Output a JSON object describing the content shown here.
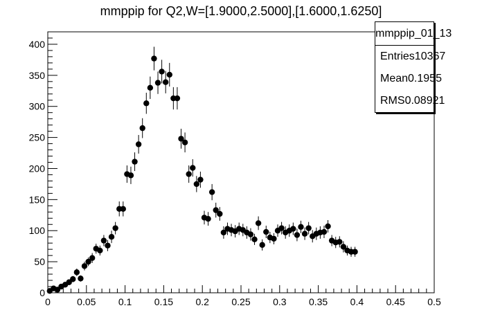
{
  "title": "mmppip for Q2,W=[1.9000,2.5000],[1.6000,1.6250]",
  "stats_box": {
    "name": "mmppip_01_13",
    "entries_label": "Entries",
    "entries_value": "10367",
    "mean_label": "Mean",
    "mean_value": "0.1955",
    "rms_label": "RMS",
    "rms_value": "0.08921"
  },
  "chart_data": {
    "type": "scatter",
    "title": "mmppip for Q2,W=[1.9000,2.5000],[1.6000,1.6250]",
    "xlabel": "",
    "ylabel": "",
    "xlim": [
      0,
      0.5
    ],
    "ylim": [
      0,
      420
    ],
    "x_ticks": [
      0,
      0.05,
      0.1,
      0.15,
      0.2,
      0.25,
      0.3,
      0.35,
      0.4,
      0.45,
      0.5
    ],
    "x_tick_labels": [
      "0",
      "0.05",
      "0.1",
      "0.15",
      "0.2",
      "0.25",
      "0.3",
      "0.35",
      "0.4",
      "0.45",
      "0.5"
    ],
    "y_ticks": [
      0,
      50,
      100,
      150,
      200,
      250,
      300,
      350,
      400
    ],
    "y_tick_labels": [
      "0",
      "50",
      "100",
      "150",
      "200",
      "250",
      "300",
      "350",
      "400"
    ],
    "grid": false,
    "legend": "top-right",
    "marker_color": "#000000",
    "series": [
      {
        "x": [
          0.0025,
          0.0075,
          0.0125,
          0.0175,
          0.0225,
          0.0275,
          0.0325,
          0.0375,
          0.0425,
          0.0475,
          0.0525,
          0.0575,
          0.0625,
          0.0675,
          0.0725,
          0.0775,
          0.0825,
          0.0875,
          0.0925,
          0.0975,
          0.1025,
          0.1075,
          0.1125,
          0.1175,
          0.1225,
          0.1275,
          0.1325,
          0.1375,
          0.1425,
          0.1475,
          0.1525,
          0.1575,
          0.1625,
          0.1675,
          0.1725,
          0.1775,
          0.1825,
          0.1875,
          0.1925,
          0.1975,
          0.2025,
          0.2075,
          0.2125,
          0.2175,
          0.2225,
          0.2275,
          0.2325,
          0.2375,
          0.2425,
          0.2475,
          0.2525,
          0.2575,
          0.2625,
          0.2675,
          0.2725,
          0.2775,
          0.2825,
          0.2875,
          0.2925,
          0.2975,
          0.3025,
          0.3075,
          0.3125,
          0.3175,
          0.3225,
          0.3275,
          0.3325,
          0.3375,
          0.3425,
          0.3475,
          0.3525,
          0.3575,
          0.3625,
          0.3675,
          0.3725,
          0.3775,
          0.3825,
          0.3875,
          0.3925,
          0.3975
        ],
        "y": [
          3,
          7,
          5,
          10,
          13,
          17,
          22,
          33,
          23,
          43,
          50,
          56,
          71,
          68,
          84,
          76,
          90,
          104,
          135,
          135,
          191,
          189,
          211,
          239,
          265,
          305,
          330,
          377,
          338,
          356,
          339,
          351,
          313,
          313,
          248,
          242,
          191,
          201,
          175,
          182,
          121,
          119,
          162,
          133,
          127,
          97,
          103,
          101,
          99,
          103,
          101,
          97,
          94,
          86,
          112,
          77,
          98,
          89,
          87,
          100,
          104,
          97,
          100,
          103,
          93,
          106,
          95,
          104,
          91,
          95,
          97,
          98,
          107,
          84,
          81,
          82,
          74,
          68,
          66,
          66
        ],
        "yerr": [
          2,
          3,
          2,
          3,
          4,
          4,
          5,
          6,
          5,
          7,
          7,
          8,
          8,
          8,
          9,
          9,
          10,
          10,
          12,
          12,
          14,
          14,
          15,
          15,
          16,
          17,
          18,
          19,
          18,
          19,
          18,
          19,
          18,
          18,
          16,
          16,
          14,
          14,
          13,
          13,
          11,
          11,
          13,
          12,
          11,
          10,
          10,
          10,
          10,
          10,
          10,
          10,
          10,
          9,
          11,
          9,
          10,
          9,
          9,
          10,
          10,
          10,
          10,
          10,
          10,
          10,
          10,
          10,
          10,
          10,
          10,
          10,
          10,
          9,
          9,
          9,
          9,
          8,
          8,
          8
        ]
      }
    ]
  }
}
